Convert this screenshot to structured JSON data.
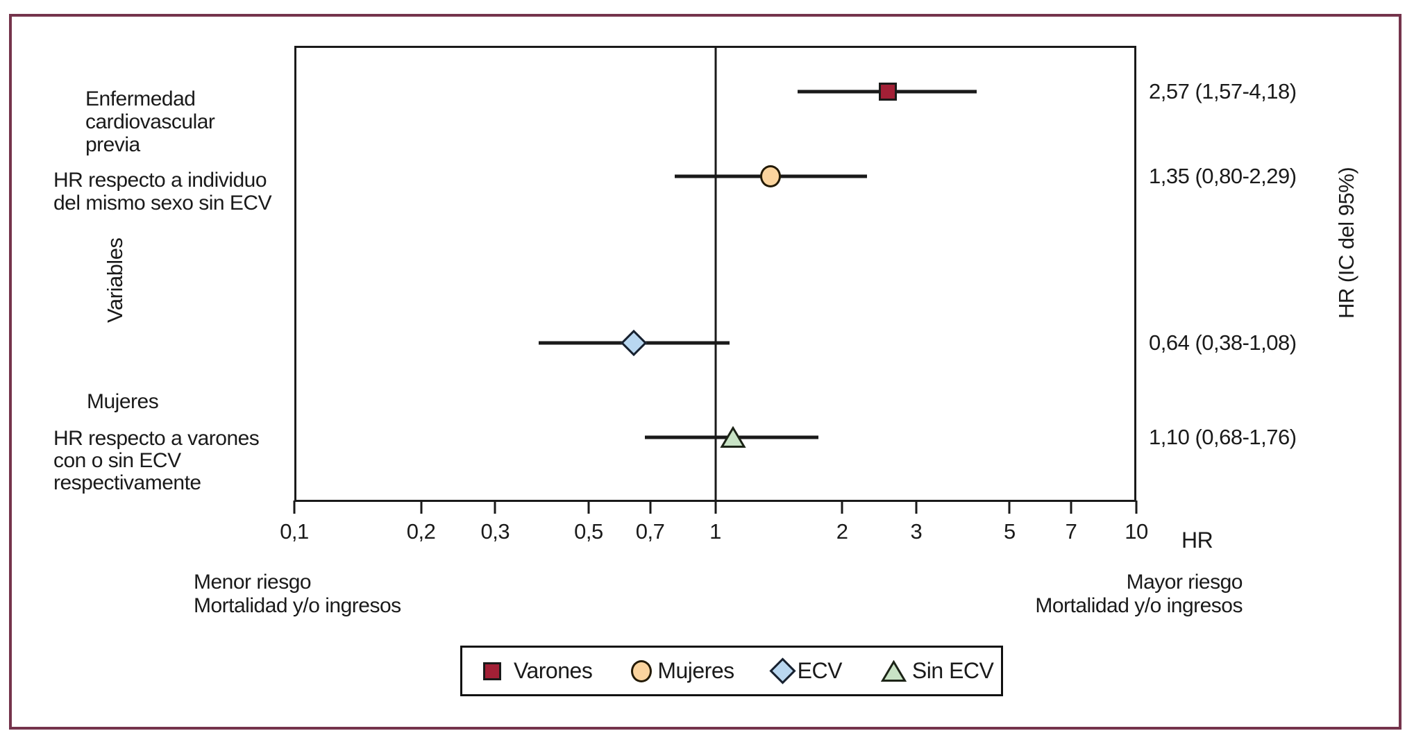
{
  "figure": {
    "border_color": "#75344c",
    "background": "#ffffff"
  },
  "chart_data": {
    "type": "scatter",
    "subtype": "forest-plot",
    "x_axis": {
      "label": "HR",
      "scale": "log",
      "min": 0.1,
      "max": 10,
      "tick_values": [
        0.1,
        0.2,
        0.3,
        0.5,
        0.7,
        1,
        2,
        3,
        5,
        7,
        10
      ],
      "tick_labels": [
        "0,1",
        "0,2",
        "0,3",
        "0,5",
        "0,7",
        "1",
        "2",
        "3",
        "5",
        "7",
        "10"
      ]
    },
    "reference_line_value": 1,
    "left_axis_title": "Variables",
    "right_axis_title": "HR (IC del 95%)",
    "rows": [
      {
        "series": "Varones",
        "shape": "square",
        "fill": "#a22036",
        "hr": 2.57,
        "ci_low": 1.57,
        "ci_high": 4.18,
        "value_text": "2,57 (1,57-4,18)",
        "y_frac": 0.1005
      },
      {
        "series": "Mujeres",
        "shape": "circle",
        "fill": "#fbd49e",
        "hr": 1.35,
        "ci_low": 0.8,
        "ci_high": 2.29,
        "value_text": "1,35 (0,80-2,29)",
        "y_frac": 0.2861
      },
      {
        "series": "ECV",
        "shape": "diamond",
        "fill": "#b9d7f0",
        "hr": 0.64,
        "ci_low": 0.38,
        "ci_high": 1.08,
        "value_text": "0,64 (0,38-1,08)",
        "y_frac": 0.6514
      },
      {
        "series": "Sin ECV",
        "shape": "triangle",
        "fill": "#c8e3c5",
        "hr": 1.1,
        "ci_low": 0.68,
        "ci_high": 1.76,
        "value_text": "1,10 (0,68-1,76)",
        "y_frac": 0.8585
      }
    ],
    "row_group_labels": {
      "ecv_previa": "Enfermedad\ncardiovascular\nprevia",
      "hr_individuo": "HR respecto a individuo\ndel mismo sexo sin ECV",
      "mujeres": "Mujeres",
      "hr_varones": "HR respecto a varones\ncon o sin ECV\nrespectivamente"
    },
    "direction_notes": {
      "left": "Menor riesgo\nMortalidad y/o ingresos",
      "right": "Mayor riesgo\nMortalidad y/o ingresos"
    },
    "legend": [
      {
        "label": "Varones",
        "shape": "square",
        "fill": "#a22036"
      },
      {
        "label": "Mujeres",
        "shape": "circle",
        "fill": "#fbd49e"
      },
      {
        "label": "ECV",
        "shape": "diamond",
        "fill": "#b9d7f0"
      },
      {
        "label": "Sin ECV",
        "shape": "triangle",
        "fill": "#c8e3c5"
      }
    ]
  }
}
